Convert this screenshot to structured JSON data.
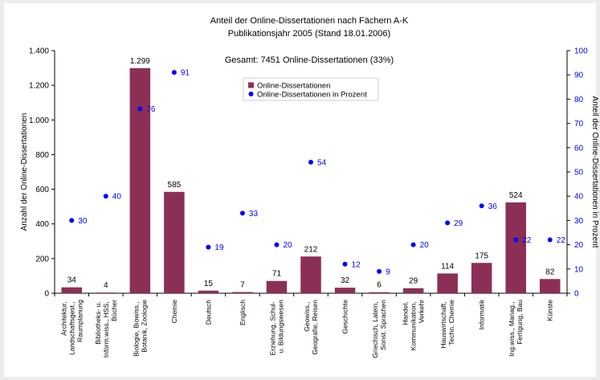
{
  "chart_data": {
    "type": "bar",
    "title": "Anteil der Online-Dissertationen nach Fächern A-K",
    "subtitle": "Publikationsjahr 2005 (Stand 18.01.2006)",
    "annotation": "Gesamt: 7451 Online-Dissertationen (33%)",
    "y_label": "Anzahl der Online-Dissertationen",
    "y2_label": "Anteil der Online-Dissertationen in Prozent",
    "categories": [
      "Architektur, Landschaftsgest., Raumplanung",
      "Bibliotheks- u. Inform.wiss., HSS, Bücher",
      "Biologie, Biowiss., Botanik, Zoologie",
      "Chemie",
      "Deutsch",
      "Englisch",
      "Erziehung, Schul- u. Bildungswesen",
      "Geowiss., Geografie, Reisen",
      "Geschichte",
      "Griechisch, Latein, Sonst. Sprachen",
      "Handel, Kommunikation, Verkehr",
      "Hauswirtschaft, Techn. Chemie",
      "Informatik",
      "Ing.wiss., Manag., Fertigung, Bau",
      "Künste"
    ],
    "series": [
      {
        "name": "Online-Dissertationen",
        "type": "bar",
        "color": "#8c2f56",
        "values": [
          34,
          4,
          1299,
          585,
          15,
          7,
          71,
          212,
          32,
          6,
          29,
          114,
          175,
          524,
          82
        ],
        "value_labels": [
          "34",
          "4",
          "1.299",
          "585",
          "15",
          "7",
          "71",
          "212",
          "32",
          "6",
          "29",
          "114",
          "175",
          "524",
          "82"
        ]
      },
      {
        "name": "Online-Dissertationen in Prozent",
        "type": "scatter",
        "color": "#0000ff",
        "axis": "y2",
        "values": [
          30,
          40,
          76,
          91,
          19,
          33,
          20,
          54,
          12,
          9,
          20,
          29,
          36,
          22,
          22
        ]
      }
    ],
    "ylim": [
      0,
      1400
    ],
    "yticks": [
      0,
      200,
      400,
      600,
      800,
      {
        "value": 1000,
        "label": "1.000"
      },
      {
        "value": 1200,
        "label": "1.200"
      },
      {
        "value": 1400,
        "label": "1.400"
      }
    ],
    "y2lim": [
      0,
      100
    ],
    "y2ticks": [
      0,
      10,
      20,
      30,
      40,
      50,
      60,
      70,
      80,
      90,
      100
    ],
    "grid": false
  }
}
